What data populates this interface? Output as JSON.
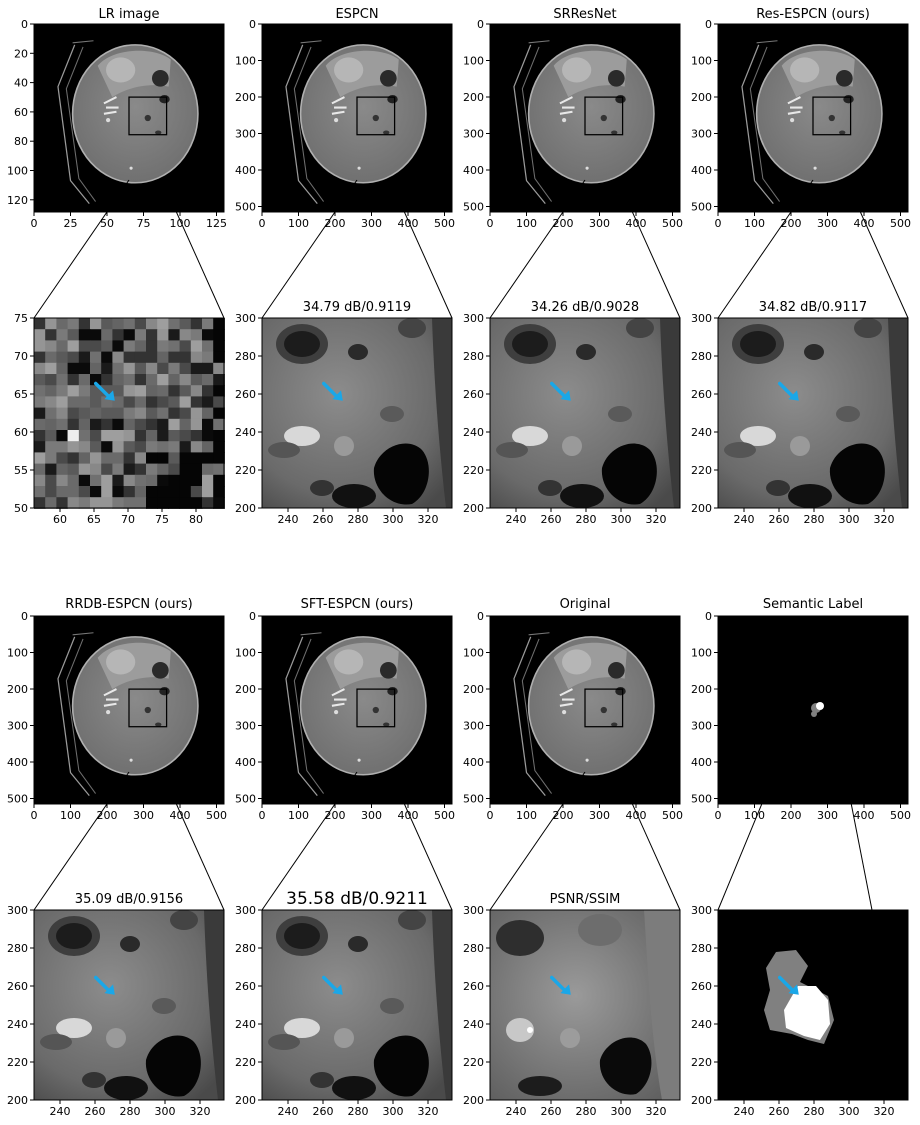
{
  "figure": {
    "top_row": {
      "panels": [
        {
          "title": "LR image",
          "xticks": [
            "0",
            "25",
            "50",
            "75",
            "100",
            "125"
          ],
          "yticks": [
            "0",
            "20",
            "40",
            "60",
            "80",
            "100",
            "120"
          ]
        },
        {
          "title": "ESPCN",
          "xticks": [
            "0",
            "100",
            "200",
            "300",
            "400",
            "500"
          ],
          "yticks": [
            "0",
            "100",
            "200",
            "300",
            "400",
            "500"
          ]
        },
        {
          "title": "SRResNet",
          "xticks": [
            "0",
            "100",
            "200",
            "300",
            "400",
            "500"
          ],
          "yticks": [
            "0",
            "100",
            "200",
            "300",
            "400",
            "500"
          ]
        },
        {
          "title": "Res-ESPCN (ours)",
          "xticks": [
            "0",
            "100",
            "200",
            "300",
            "400",
            "500"
          ],
          "yticks": [
            "0",
            "100",
            "200",
            "300",
            "400",
            "500"
          ]
        }
      ],
      "zooms": [
        {
          "title": "",
          "xticks": [
            "60",
            "65",
            "70",
            "75",
            "80"
          ],
          "yticks": [
            "75",
            "70",
            "65",
            "60",
            "55",
            "50"
          ]
        },
        {
          "title": "34.79 dB/0.9119",
          "xticks": [
            "240",
            "260",
            "280",
            "300",
            "320"
          ],
          "yticks": [
            "300",
            "280",
            "260",
            "240",
            "220",
            "200"
          ]
        },
        {
          "title": "34.26 dB/0.9028",
          "xticks": [
            "240",
            "260",
            "280",
            "300",
            "320"
          ],
          "yticks": [
            "300",
            "280",
            "260",
            "240",
            "220",
            "200"
          ]
        },
        {
          "title": "34.82 dB/0.9117",
          "xticks": [
            "240",
            "260",
            "280",
            "300",
            "320"
          ],
          "yticks": [
            "300",
            "280",
            "260",
            "240",
            "220",
            "200"
          ]
        }
      ]
    },
    "bottom_row": {
      "panels": [
        {
          "title": "RRDB-ESPCN (ours)",
          "xticks": [
            "0",
            "100",
            "200",
            "300",
            "400",
            "500"
          ],
          "yticks": [
            "0",
            "100",
            "200",
            "300",
            "400",
            "500"
          ]
        },
        {
          "title": "SFT-ESPCN (ours)",
          "xticks": [
            "0",
            "100",
            "200",
            "300",
            "400",
            "500"
          ],
          "yticks": [
            "0",
            "100",
            "200",
            "300",
            "400",
            "500"
          ]
        },
        {
          "title": "Original",
          "xticks": [
            "0",
            "100",
            "200",
            "300",
            "400",
            "500"
          ],
          "yticks": [
            "0",
            "100",
            "200",
            "300",
            "400",
            "500"
          ]
        },
        {
          "title": "Semantic Label",
          "xticks": [
            "0",
            "100",
            "200",
            "300",
            "400",
            "500"
          ],
          "yticks": [
            "0",
            "100",
            "200",
            "300",
            "400",
            "500"
          ]
        }
      ],
      "zooms": [
        {
          "title": "35.09 dB/0.9156",
          "xticks": [
            "240",
            "260",
            "280",
            "300",
            "320"
          ],
          "yticks": [
            "300",
            "280",
            "260",
            "240",
            "220",
            "200"
          ]
        },
        {
          "title": "35.58 dB/0.9211",
          "xticks": [
            "240",
            "260",
            "280",
            "300",
            "320"
          ],
          "yticks": [
            "300",
            "280",
            "260",
            "240",
            "220",
            "200"
          ]
        },
        {
          "title": "PSNR/SSIM",
          "xticks": [
            "240",
            "260",
            "280",
            "300",
            "320"
          ],
          "yticks": [
            "300",
            "280",
            "260",
            "240",
            "220",
            "200"
          ]
        },
        {
          "title": "",
          "xticks": [
            "240",
            "260",
            "280",
            "300",
            "320"
          ],
          "yticks": [
            "300",
            "280",
            "260",
            "240",
            "220",
            "200"
          ]
        }
      ]
    },
    "colors": {
      "arrow": "#1aa7e8",
      "background": "#000000",
      "label_white": "#ffffff",
      "label_gray": "#808080"
    }
  }
}
